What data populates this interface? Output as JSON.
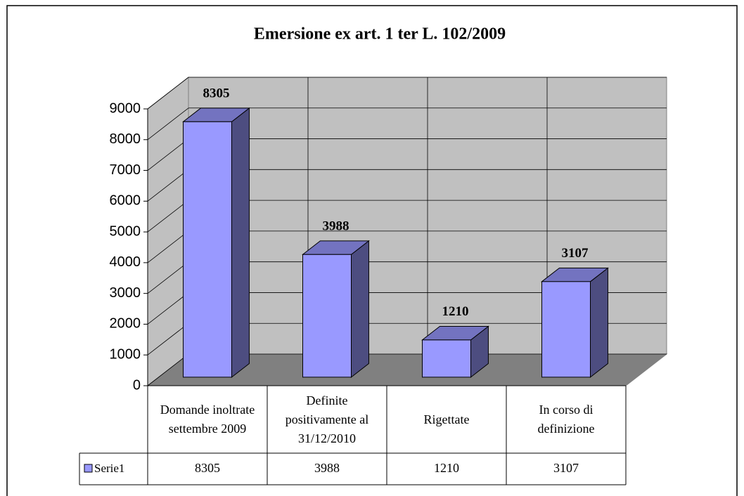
{
  "chart_data": {
    "type": "bar3d",
    "title": "Emersione ex art. 1 ter L. 102/2009",
    "categories": [
      "Domande inoltrate settembre 2009",
      "Definite positivamente al 31/12/2010",
      "Rigettate",
      "In corso di definizione"
    ],
    "series": [
      {
        "name": "Serie1",
        "color": "#9999ff",
        "values": [
          8305,
          3988,
          1210,
          3107
        ]
      }
    ],
    "ylim": [
      0,
      9000
    ],
    "yticks": [
      0,
      1000,
      2000,
      3000,
      4000,
      5000,
      6000,
      7000,
      8000,
      9000
    ],
    "grid": true,
    "data_table": true
  }
}
